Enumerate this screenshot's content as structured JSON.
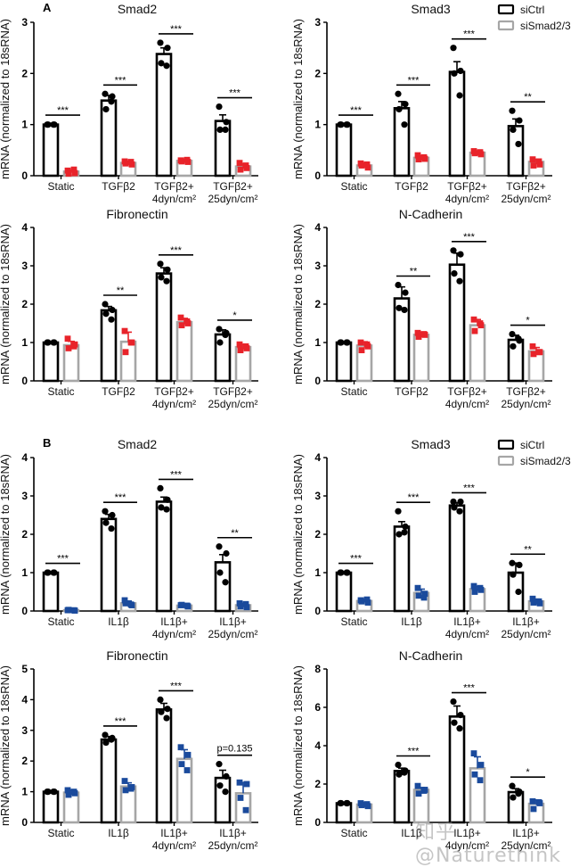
{
  "figure": {
    "panel_labels": [
      "A",
      "B"
    ],
    "legend": {
      "entries": [
        {
          "label": "siCtrl",
          "color": "#000000"
        },
        {
          "label": "siSmad2/3",
          "color": "#a6a6a6"
        }
      ]
    },
    "watermark": "知乎 @Naturethink",
    "colors": {
      "ctrl_bar": "#000000",
      "knock_bar": "#a6a6a6",
      "ctrl_point": "#000000",
      "knock_point_A": "#e8232a",
      "knock_point_B": "#1a4a9c"
    }
  },
  "chart_data": [
    {
      "type": "bar",
      "panel": "A",
      "title": "Smad2",
      "ylabel": "mRNA (normalized to 18sRNA)",
      "ylim": [
        0,
        3
      ],
      "yticks": [
        0,
        1,
        2,
        3
      ],
      "categories": [
        [
          "Static"
        ],
        [
          "TGFβ2"
        ],
        [
          "TGFβ2+",
          "4dyn/cm²"
        ],
        [
          "TGFβ2+",
          "25dyn/cm²"
        ]
      ],
      "series": [
        {
          "name": "siCtrl",
          "values": [
            1.0,
            1.47,
            2.38,
            1.07
          ],
          "errors": [
            0.01,
            0.1,
            0.12,
            0.12
          ],
          "points": [
            [
              1,
              1,
              1,
              1
            ],
            [
              1.6,
              1.55,
              1.3,
              1.45
            ],
            [
              2.6,
              2.5,
              2.2,
              2.15
            ],
            [
              1.35,
              1.05,
              0.9,
              0.9
            ]
          ]
        },
        {
          "name": "siSmad2/3",
          "values": [
            0.08,
            0.25,
            0.29,
            0.18
          ],
          "errors": [
            0.03,
            0.03,
            0.02,
            0.05
          ],
          "points": [
            [
              0.1,
              0.05,
              0.04,
              0.12
            ],
            [
              0.28,
              0.22,
              0.24,
              0.27
            ],
            [
              0.3,
              0.27,
              0.28,
              0.31
            ],
            [
              0.25,
              0.15,
              0.12,
              0.2
            ]
          ]
        }
      ],
      "significance": [
        "***",
        "***",
        "***",
        "***"
      ],
      "show_legend": false
    },
    {
      "type": "bar",
      "panel": "",
      "title": "Smad3",
      "ylabel": "mRNA (normalized to 18sRNA)",
      "ylim": [
        0,
        3
      ],
      "yticks": [
        0,
        1,
        2,
        3
      ],
      "categories": [
        [
          "Static"
        ],
        [
          "TGFβ2"
        ],
        [
          "TGFβ2+",
          "4dyn/cm²"
        ],
        [
          "TGFβ2+",
          "25dyn/cm²"
        ]
      ],
      "series": [
        {
          "name": "siCtrl",
          "values": [
            1.0,
            1.32,
            2.03,
            0.97
          ],
          "errors": [
            0.01,
            0.13,
            0.2,
            0.14
          ],
          "points": [
            [
              1,
              1,
              1,
              1
            ],
            [
              1.6,
              1.4,
              1.3,
              1.0
            ],
            [
              2.5,
              2.05,
              2.0,
              1.57
            ],
            [
              1.27,
              1.08,
              0.9,
              0.62
            ]
          ]
        },
        {
          "name": "siSmad2/3",
          "values": [
            0.2,
            0.35,
            0.45,
            0.27
          ],
          "errors": [
            0.04,
            0.04,
            0.03,
            0.05
          ],
          "points": [
            [
              0.24,
              0.16,
              0.2,
              0.22
            ],
            [
              0.4,
              0.33,
              0.32,
              0.36
            ],
            [
              0.48,
              0.42,
              0.44,
              0.46
            ],
            [
              0.32,
              0.22,
              0.2,
              0.28
            ]
          ]
        }
      ],
      "significance": [
        "***",
        "***",
        "***",
        "**"
      ],
      "show_legend": true
    },
    {
      "type": "bar",
      "panel": "",
      "title": "Fibronectin",
      "ylabel": "mRNA (normalized to 18sRNA)",
      "ylim": [
        0,
        4
      ],
      "yticks": [
        0,
        1,
        2,
        3,
        4
      ],
      "categories": [
        [
          "Static"
        ],
        [
          "TGFβ2"
        ],
        [
          "TGFβ2+",
          "4dyn/cm²"
        ],
        [
          "TGFβ2+",
          "25dyn/cm²"
        ]
      ],
      "series": [
        {
          "name": "siCtrl",
          "values": [
            1.0,
            1.84,
            2.8,
            1.21
          ],
          "errors": [
            0.01,
            0.1,
            0.15,
            0.12
          ],
          "points": [
            [
              1,
              1,
              1,
              1
            ],
            [
              2.0,
              1.85,
              1.75,
              1.6
            ],
            [
              3.05,
              2.9,
              2.7,
              2.6
            ],
            [
              1.35,
              1.25,
              1.0,
              1.2
            ]
          ]
        },
        {
          "name": "siSmad2/3",
          "values": [
            0.93,
            1.02,
            1.53,
            0.88
          ],
          "errors": [
            0.1,
            0.25,
            0.1,
            0.07
          ],
          "points": [
            [
              1.1,
              0.95,
              0.85,
              0.9
            ],
            [
              1.3,
              1.0,
              0.75,
              1.0
            ],
            [
              1.65,
              1.5,
              1.45,
              1.55
            ],
            [
              0.95,
              0.85,
              0.8,
              0.9
            ]
          ]
        }
      ],
      "significance": [
        "",
        "**",
        "***",
        "*"
      ],
      "show_legend": false
    },
    {
      "type": "bar",
      "panel": "",
      "title": "N-Cadherin",
      "ylabel": "mRNA (normalized to 18sRNA)",
      "ylim": [
        0,
        4
      ],
      "yticks": [
        0,
        1,
        2,
        3,
        4
      ],
      "categories": [
        [
          "Static"
        ],
        [
          "TGFβ2"
        ],
        [
          "TGFβ2+",
          "4dyn/cm²"
        ],
        [
          "TGFβ2+",
          "25dyn/cm²"
        ]
      ],
      "series": [
        {
          "name": "siCtrl",
          "values": [
            1.0,
            2.15,
            3.03,
            1.07
          ],
          "errors": [
            0.01,
            0.3,
            0.3,
            0.12
          ],
          "points": [
            [
              1,
              1,
              1,
              1
            ],
            [
              2.5,
              2.3,
              1.9,
              1.85
            ],
            [
              3.4,
              3.3,
              2.8,
              2.6
            ],
            [
              1.22,
              1.05,
              0.9,
              1.1
            ]
          ]
        },
        {
          "name": "siSmad2/3",
          "values": [
            0.92,
            1.2,
            1.45,
            0.77
          ],
          "errors": [
            0.1,
            0.07,
            0.15,
            0.1
          ],
          "points": [
            [
              1.0,
              0.9,
              0.8,
              0.95
            ],
            [
              1.25,
              1.2,
              1.15,
              1.22
            ],
            [
              1.6,
              1.45,
              1.3,
              1.5
            ],
            [
              0.9,
              0.75,
              0.7,
              0.75
            ]
          ]
        }
      ],
      "significance": [
        "",
        "**",
        "***",
        "*"
      ],
      "show_legend": false
    },
    {
      "type": "bar",
      "panel": "B",
      "title": "Smad2",
      "ylabel": "mRNA (normalized to 18sRNA)",
      "ylim": [
        0,
        4
      ],
      "yticks": [
        0,
        1,
        2,
        3,
        4
      ],
      "categories": [
        [
          "Static"
        ],
        [
          "IL1β"
        ],
        [
          "IL1β+",
          "4dyn/cm²"
        ],
        [
          "IL1β+",
          "25dyn/cm²"
        ]
      ],
      "series": [
        {
          "name": "siCtrl",
          "values": [
            1.0,
            2.4,
            2.85,
            1.27
          ],
          "errors": [
            0.01,
            0.12,
            0.12,
            0.2
          ],
          "points": [
            [
              1,
              1,
              1,
              1
            ],
            [
              2.6,
              2.5,
              2.3,
              2.15
            ],
            [
              3.2,
              2.9,
              2.7,
              2.65
            ],
            [
              1.68,
              1.5,
              1.0,
              0.75
            ]
          ]
        },
        {
          "name": "siSmad2/3",
          "values": [
            0.02,
            0.2,
            0.14,
            0.15
          ],
          "errors": [
            0.01,
            0.06,
            0.03,
            0.05
          ],
          "points": [
            [
              0.02,
              0.01,
              0.03,
              0.02
            ],
            [
              0.28,
              0.15,
              0.2,
              0.17
            ],
            [
              0.15,
              0.12,
              0.16,
              0.14
            ],
            [
              0.2,
              0.1,
              0.12,
              0.18
            ]
          ]
        }
      ],
      "significance": [
        "***",
        "***",
        "***",
        "**"
      ],
      "show_legend": false
    },
    {
      "type": "bar",
      "panel": "",
      "title": "Smad3",
      "ylabel": "mRNA (normalized to 18sRNA)",
      "ylim": [
        0,
        4
      ],
      "yticks": [
        0,
        1,
        2,
        3,
        4
      ],
      "categories": [
        [
          "Static"
        ],
        [
          "IL1β"
        ],
        [
          "IL1β+",
          "4dyn/cm²"
        ],
        [
          "IL1β+",
          "25dyn/cm²"
        ]
      ],
      "series": [
        {
          "name": "siCtrl",
          "values": [
            1.0,
            2.2,
            2.75,
            1.0
          ],
          "errors": [
            0.01,
            0.13,
            0.07,
            0.25
          ],
          "points": [
            [
              1,
              1,
              1,
              1
            ],
            [
              2.6,
              2.2,
              2.0,
              2.05
            ],
            [
              2.85,
              2.85,
              2.7,
              2.6
            ],
            [
              1.25,
              1.2,
              0.95,
              0.5
            ]
          ]
        },
        {
          "name": "siSmad2/3",
          "values": [
            0.26,
            0.47,
            0.57,
            0.25
          ],
          "errors": [
            0.03,
            0.1,
            0.07,
            0.06
          ],
          "points": [
            [
              0.28,
              0.22,
              0.25,
              0.3
            ],
            [
              0.6,
              0.45,
              0.4,
              0.35
            ],
            [
              0.65,
              0.55,
              0.5,
              0.6
            ],
            [
              0.32,
              0.2,
              0.22,
              0.25
            ]
          ]
        }
      ],
      "significance": [
        "***",
        "***",
        "***",
        "**"
      ],
      "show_legend": true
    },
    {
      "type": "bar",
      "panel": "",
      "title": "Fibronectin",
      "ylabel": "mRNA (normalized to 18sRNA)",
      "ylim": [
        0,
        5
      ],
      "yticks": [
        0,
        1,
        2,
        3,
        4,
        5
      ],
      "categories": [
        [
          "Static"
        ],
        [
          "IL1β"
        ],
        [
          "IL1β+",
          "4dyn/cm²"
        ],
        [
          "IL1β+",
          "25dyn/cm²"
        ]
      ],
      "series": [
        {
          "name": "siCtrl",
          "values": [
            1.0,
            2.7,
            3.68,
            1.45
          ],
          "errors": [
            0.01,
            0.1,
            0.2,
            0.25
          ],
          "points": [
            [
              1,
              1,
              1,
              1
            ],
            [
              2.85,
              2.75,
              2.6,
              2.7
            ],
            [
              4.0,
              3.7,
              3.6,
              3.4
            ],
            [
              1.9,
              1.5,
              1.2,
              1.0
            ]
          ]
        },
        {
          "name": "siSmad2/3",
          "values": [
            0.97,
            1.17,
            2.07,
            0.95
          ],
          "errors": [
            0.08,
            0.12,
            0.3,
            0.35
          ],
          "points": [
            [
              1.05,
              0.95,
              0.9,
              1.0
            ],
            [
              1.35,
              1.15,
              1.05,
              1.1
            ],
            [
              2.45,
              2.2,
              1.9,
              1.7
            ],
            [
              1.3,
              1.25,
              0.8,
              0.4
            ]
          ]
        }
      ],
      "significance": [
        "",
        "***",
        "***",
        "p=0.135"
      ],
      "show_legend": false
    },
    {
      "type": "bar",
      "panel": "",
      "title": "N-Cadherin",
      "ylabel": "mRNA (normalized to 18sRNA)",
      "ylim": [
        0,
        8
      ],
      "yticks": [
        0,
        2,
        4,
        6,
        8
      ],
      "categories": [
        [
          "Static"
        ],
        [
          "IL1β"
        ],
        [
          "IL1β+",
          "4dyn/cm²"
        ],
        [
          "IL1β+",
          "25dyn/cm²"
        ]
      ],
      "series": [
        {
          "name": "siCtrl",
          "values": [
            1.0,
            2.68,
            5.52,
            1.58
          ],
          "errors": [
            0.01,
            0.15,
            0.55,
            0.18
          ],
          "points": [
            [
              1,
              1,
              1,
              1
            ],
            [
              3.0,
              2.7,
              2.5,
              2.6
            ],
            [
              6.3,
              5.6,
              5.2,
              4.9
            ],
            [
              1.9,
              1.6,
              1.3,
              1.5
            ]
          ]
        },
        {
          "name": "siSmad2/3",
          "values": [
            0.93,
            1.7,
            2.82,
            0.97
          ],
          "errors": [
            0.1,
            0.12,
            0.6,
            0.2
          ],
          "points": [
            [
              1.0,
              0.85,
              0.9,
              0.95
            ],
            [
              1.9,
              1.7,
              1.5,
              1.65
            ],
            [
              3.6,
              3.0,
              2.5,
              2.2
            ],
            [
              1.1,
              1.0,
              0.7,
              1.05
            ]
          ]
        }
      ],
      "significance": [
        "",
        "***",
        "***",
        "*"
      ],
      "show_legend": false
    }
  ]
}
